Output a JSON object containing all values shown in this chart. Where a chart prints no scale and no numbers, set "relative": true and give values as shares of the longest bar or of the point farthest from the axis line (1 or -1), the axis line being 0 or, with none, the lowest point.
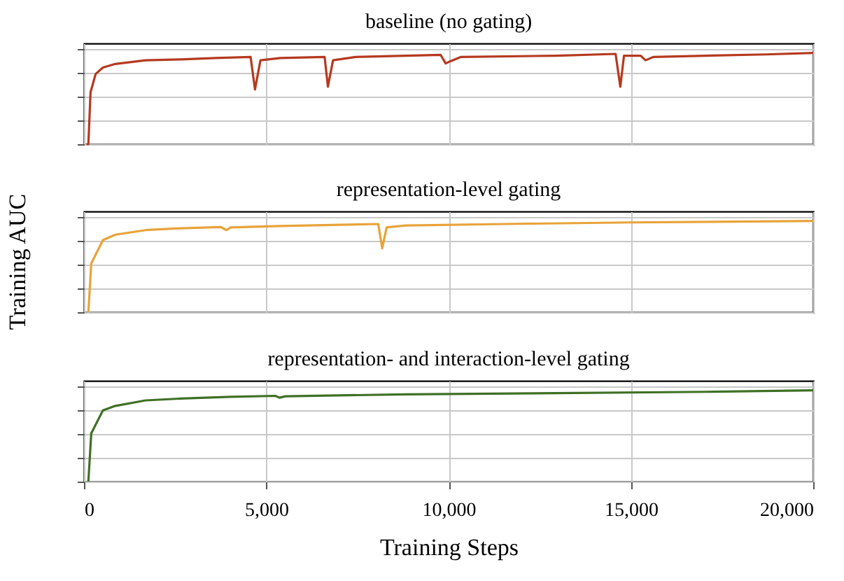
{
  "chart_data": [
    {
      "type": "line",
      "title": "baseline (no gating)",
      "relative": true,
      "grid": true,
      "tick_labels": false,
      "xlim": [
        0,
        20000
      ],
      "xticks": [
        {
          "value": 0,
          "label": null
        },
        {
          "value": 5000,
          "label": null
        },
        {
          "value": 10000,
          "label": null
        },
        {
          "value": 15000,
          "label": null
        },
        {
          "value": 20000,
          "label": null
        }
      ],
      "x": [
        70,
        120,
        180,
        320,
        520,
        860,
        1690,
        2650,
        3610,
        4570,
        4690,
        4840,
        5390,
        6600,
        6690,
        6830,
        7450,
        9780,
        9920,
        10050,
        10330,
        12940,
        14580,
        14710,
        14810,
        15270,
        15400,
        15610,
        17050,
        18700,
        20000
      ],
      "series": [
        {
          "color": "#b5391f",
          "values": [
            0,
            0,
            0.57,
            0.77,
            0.84,
            0.88,
            0.92,
            0.93,
            0.945,
            0.956,
            0.6,
            0.92,
            0.945,
            0.956,
            0.63,
            0.92,
            0.956,
            0.98,
            0.885,
            0.91,
            0.956,
            0.97,
            0.99,
            0.63,
            0.97,
            0.97,
            0.92,
            0.956,
            0.97,
            0.984,
            1
          ]
        }
      ]
    },
    {
      "type": "line",
      "title": "representation-level gating",
      "ylabel": "Training AUC",
      "relative": true,
      "grid": true,
      "tick_labels": false,
      "xlim": [
        0,
        20000
      ],
      "xticks": [
        {
          "value": 0,
          "label": null
        },
        {
          "value": 5000,
          "label": null
        },
        {
          "value": 10000,
          "label": null
        },
        {
          "value": 15000,
          "label": null
        },
        {
          "value": 20000,
          "label": null
        }
      ],
      "x": [
        120,
        200,
        520,
        860,
        1690,
        2650,
        3750,
        3910,
        4020,
        5390,
        8070,
        8180,
        8300,
        8820,
        11560,
        14990,
        18420,
        20000
      ],
      "series": [
        {
          "color": "#e8a33a",
          "values": [
            0,
            0.535,
            0.79,
            0.85,
            0.9,
            0.92,
            0.934,
            0.9,
            0.93,
            0.945,
            0.967,
            0.7,
            0.93,
            0.95,
            0.967,
            0.984,
            0.995,
            1
          ]
        }
      ]
    },
    {
      "type": "line",
      "title": "representation- and interaction-level gating",
      "xlabel": "Training Steps",
      "relative": true,
      "grid": true,
      "tick_labels": "x",
      "xlim": [
        0,
        20000
      ],
      "xticks": [
        {
          "value": 0,
          "label": "0"
        },
        {
          "value": 5000,
          "label": "5,000"
        },
        {
          "value": 10000,
          "label": "10,000"
        },
        {
          "value": 15000,
          "label": "15,000"
        },
        {
          "value": 20000,
          "label": "20,000"
        }
      ],
      "x": [
        120,
        200,
        520,
        860,
        1690,
        2650,
        4020,
        5250,
        5360,
        5530,
        8820,
        12940,
        17050,
        20000
      ],
      "series": [
        {
          "color": "#3f7025",
          "values": [
            0,
            0.53,
            0.78,
            0.83,
            0.89,
            0.91,
            0.93,
            0.94,
            0.92,
            0.935,
            0.957,
            0.97,
            0.984,
            1
          ]
        }
      ]
    }
  ]
}
